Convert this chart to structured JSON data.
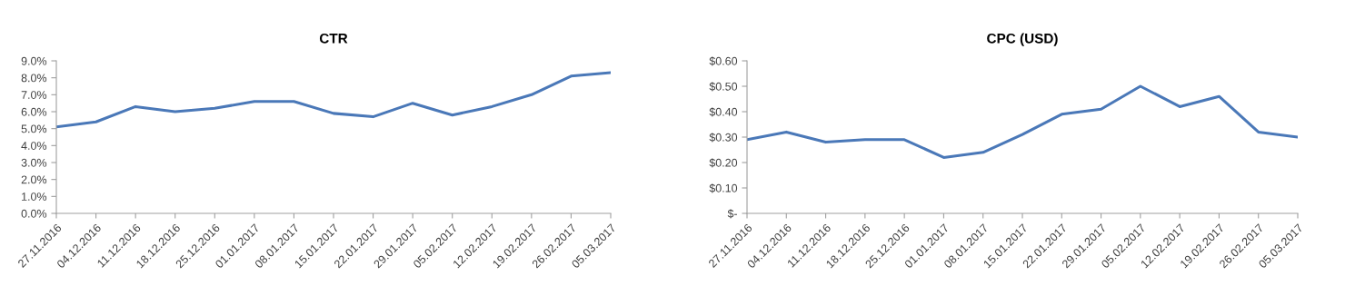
{
  "chart_data": [
    {
      "type": "line",
      "title": "CTR",
      "categories": [
        "27.11.2016",
        "04.12.2016",
        "11.12.2016",
        "18.12.2016",
        "25.12.2016",
        "01.01.2017",
        "08.01.2017",
        "15.01.2017",
        "22.01.2017",
        "29.01.2017",
        "05.02.2017",
        "12.02.2017",
        "19.02.2017",
        "26.02.2017",
        "05.03.2017"
      ],
      "series": [
        {
          "color": "#4a78b8",
          "values": [
            5.1,
            5.4,
            6.3,
            6.0,
            6.2,
            6.6,
            6.6,
            5.9,
            5.7,
            6.5,
            5.8,
            6.3,
            7.0,
            8.1,
            8.3
          ]
        }
      ],
      "ylim": [
        0,
        9
      ],
      "yticks": [
        {
          "value": 0,
          "label": "0.0%"
        },
        {
          "value": 1,
          "label": "1.0%"
        },
        {
          "value": 2,
          "label": "2.0%"
        },
        {
          "value": 3,
          "label": "3.0%"
        },
        {
          "value": 4,
          "label": "4.0%"
        },
        {
          "value": 5,
          "label": "5.0%"
        },
        {
          "value": 6,
          "label": "6.0%"
        },
        {
          "value": 7,
          "label": "7.0%"
        },
        {
          "value": 8,
          "label": "8.0%"
        },
        {
          "value": 9,
          "label": "9.0%"
        }
      ],
      "grid": false,
      "legend": false,
      "marker": "none",
      "line_style": "solid"
    },
    {
      "type": "line",
      "title": "CPC (USD)",
      "categories": [
        "27.11.2016",
        "04.12.2016",
        "11.12.2016",
        "18.12.2016",
        "25.12.2016",
        "01.01.2017",
        "08.01.2017",
        "15.01.2017",
        "22.01.2017",
        "29.01.2017",
        "05.02.2017",
        "12.02.2017",
        "19.02.2017",
        "26.02.2017",
        "05.03.2017"
      ],
      "series": [
        {
          "color": "#4a78b8",
          "values": [
            0.29,
            0.32,
            0.28,
            0.29,
            0.29,
            0.22,
            0.24,
            0.31,
            0.39,
            0.41,
            0.5,
            0.42,
            0.46,
            0.32,
            0.3
          ]
        }
      ],
      "ylim": [
        0,
        0.6
      ],
      "yticks": [
        {
          "value": 0,
          "label": "$-"
        },
        {
          "value": 0.1,
          "label": "$0.10"
        },
        {
          "value": 0.2,
          "label": "$0.20"
        },
        {
          "value": 0.3,
          "label": "$0.30"
        },
        {
          "value": 0.4,
          "label": "$0.40"
        },
        {
          "value": 0.5,
          "label": "$0.50"
        },
        {
          "value": 0.6,
          "label": "$0.60"
        }
      ],
      "grid": false,
      "legend": false,
      "marker": "none",
      "line_style": "solid"
    }
  ]
}
